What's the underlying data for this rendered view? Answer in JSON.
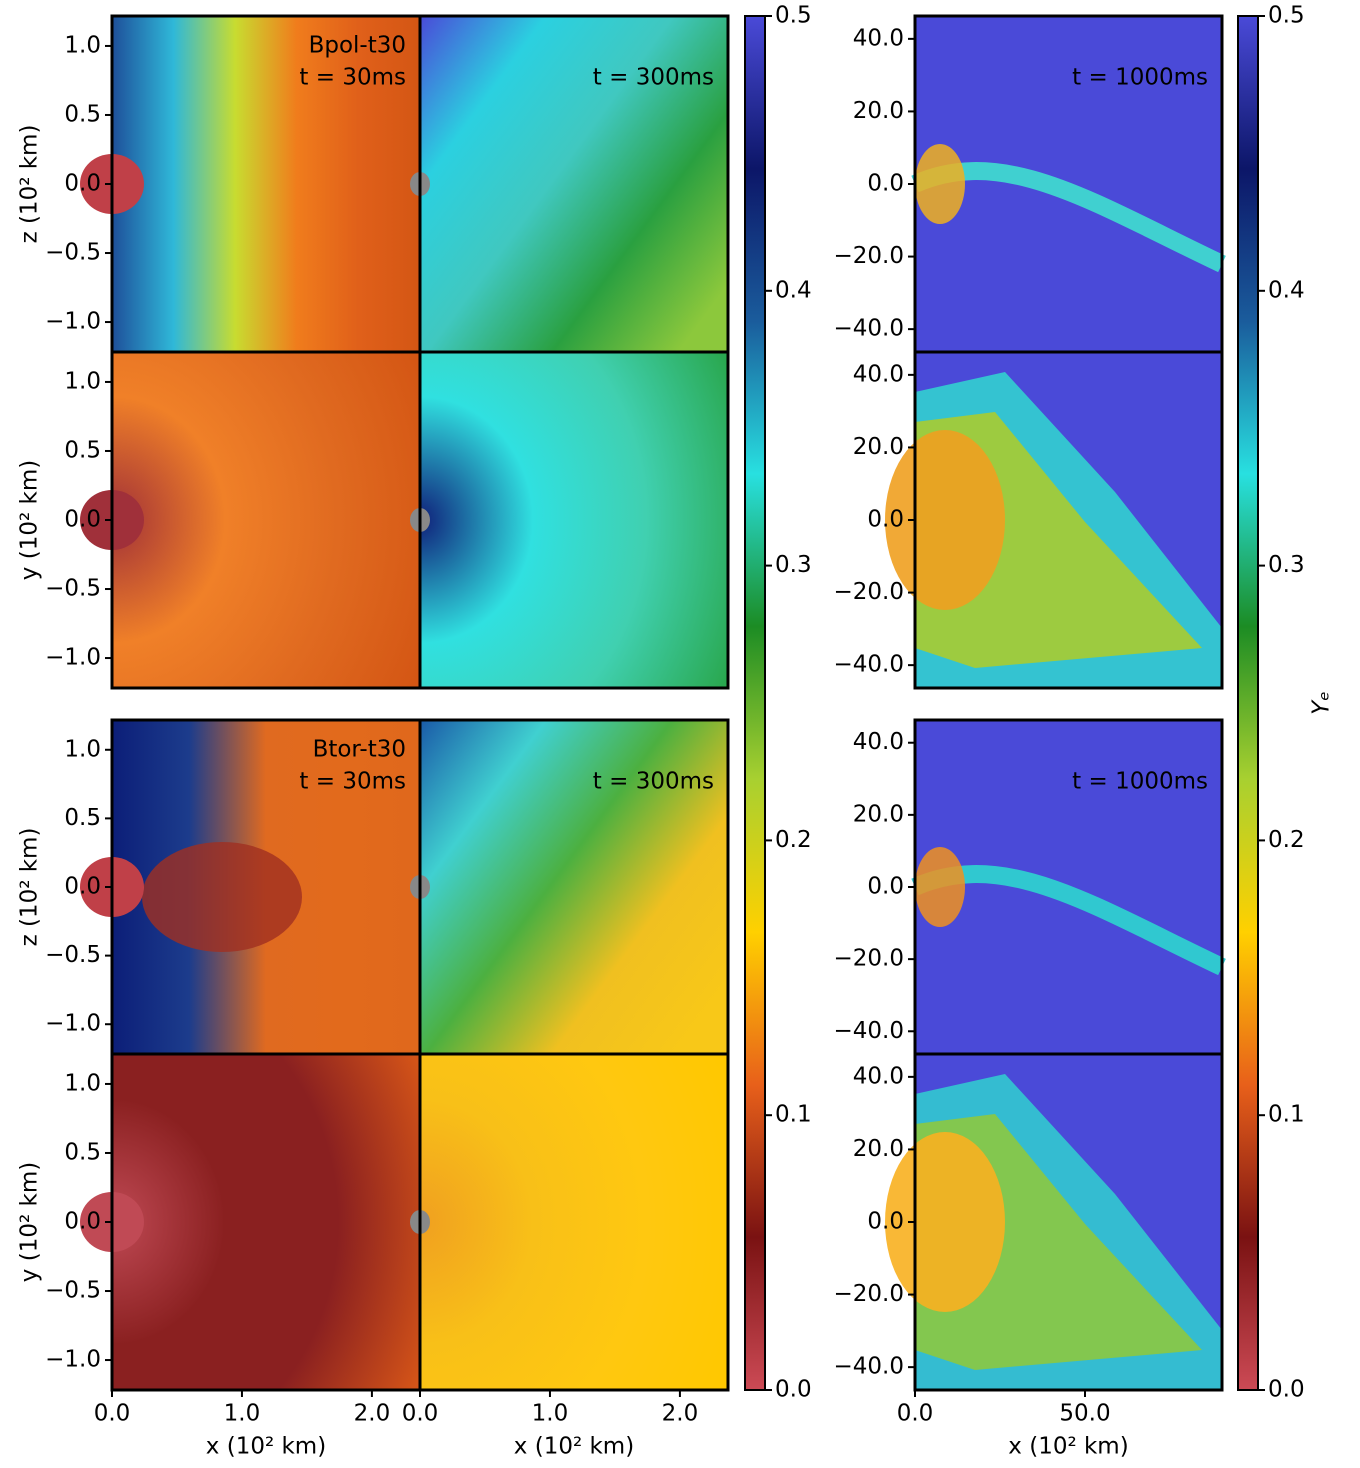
{
  "chart_data": [
    {
      "type": "heatmap",
      "annotation": [
        "Bpol-t30",
        "t = 30ms"
      ],
      "ylabel": "z (10² km)",
      "xlim": [
        0,
        2.37
      ],
      "ylim": [
        -1.217,
        1.217
      ],
      "yticks": [
        {
          "value": -1,
          "label": "−1.0"
        },
        {
          "value": -0.5,
          "label": "−0.5"
        },
        {
          "value": 0,
          "label": "0.0"
        },
        {
          "value": 0.5,
          "label": "0.5"
        },
        {
          "value": 1,
          "label": "1.0"
        }
      ]
    },
    {
      "type": "heatmap",
      "annotation": [
        "t = 300ms"
      ],
      "xlim": [
        0,
        2.37
      ],
      "ylim": [
        -1.217,
        1.217
      ]
    },
    {
      "type": "heatmap",
      "annotation": [
        "t = 1000ms"
      ],
      "xlim": [
        0,
        90.3
      ],
      "ylim": [
        -46.3,
        46.3
      ],
      "yticks": [
        {
          "value": -40,
          "label": "−40.0"
        },
        {
          "value": -20,
          "label": "−20.0"
        },
        {
          "value": 0,
          "label": "0.0"
        },
        {
          "value": 20,
          "label": "20.0"
        },
        {
          "value": 40,
          "label": "40.0"
        }
      ]
    },
    {
      "type": "heatmap",
      "ylabel": "y (10² km)",
      "xlim": [
        0,
        2.37
      ],
      "ylim": [
        -1.217,
        1.217
      ],
      "yticks": [
        {
          "value": -1,
          "label": "−1.0"
        },
        {
          "value": -0.5,
          "label": "−0.5"
        },
        {
          "value": 0,
          "label": "0.0"
        },
        {
          "value": 0.5,
          "label": "0.5"
        },
        {
          "value": 1,
          "label": "1.0"
        }
      ]
    },
    {
      "type": "heatmap",
      "xlim": [
        0,
        2.37
      ],
      "ylim": [
        -1.217,
        1.217
      ]
    },
    {
      "type": "heatmap",
      "xlim": [
        0,
        90.3
      ],
      "ylim": [
        -46.3,
        46.3
      ],
      "yticks": [
        {
          "value": -40,
          "label": "−40.0"
        },
        {
          "value": -20,
          "label": "−20.0"
        },
        {
          "value": 0,
          "label": "0.0"
        },
        {
          "value": 20,
          "label": "20.0"
        },
        {
          "value": 40,
          "label": "40.0"
        }
      ]
    },
    {
      "type": "heatmap",
      "annotation": [
        "Btor-t30",
        "t = 30ms"
      ],
      "ylabel": "z (10² km)",
      "xlim": [
        0,
        2.37
      ],
      "ylim": [
        -1.217,
        1.217
      ],
      "yticks": [
        {
          "value": -1,
          "label": "−1.0"
        },
        {
          "value": -0.5,
          "label": "−0.5"
        },
        {
          "value": 0,
          "label": "0.0"
        },
        {
          "value": 0.5,
          "label": "0.5"
        },
        {
          "value": 1,
          "label": "1.0"
        }
      ]
    },
    {
      "type": "heatmap",
      "annotation": [
        "t = 300ms"
      ],
      "xlim": [
        0,
        2.37
      ],
      "ylim": [
        -1.217,
        1.217
      ]
    },
    {
      "type": "heatmap",
      "annotation": [
        "t = 1000ms"
      ],
      "xlim": [
        0,
        90.3
      ],
      "ylim": [
        -46.3,
        46.3
      ],
      "yticks": [
        {
          "value": -40,
          "label": "−40.0"
        },
        {
          "value": -20,
          "label": "−20.0"
        },
        {
          "value": 0,
          "label": "0.0"
        },
        {
          "value": 20,
          "label": "20.0"
        },
        {
          "value": 40,
          "label": "40.0"
        }
      ]
    },
    {
      "type": "heatmap",
      "ylabel": "y (10² km)",
      "xlabel": "x (10² km)",
      "xlim": [
        0,
        2.37
      ],
      "ylim": [
        -1.217,
        1.217
      ],
      "yticks": [
        {
          "value": -1,
          "label": "−1.0"
        },
        {
          "value": -0.5,
          "label": "−0.5"
        },
        {
          "value": 0,
          "label": "0.0"
        },
        {
          "value": 0.5,
          "label": "0.5"
        },
        {
          "value": 1,
          "label": "1.0"
        }
      ],
      "xticks": [
        {
          "value": 0,
          "label": "0.0"
        },
        {
          "value": 1,
          "label": "1.0"
        },
        {
          "value": 2,
          "label": "2.0"
        }
      ]
    },
    {
      "type": "heatmap",
      "xlabel": "x (10² km)",
      "xlim": [
        0,
        2.37
      ],
      "ylim": [
        -1.217,
        1.217
      ],
      "xticks": [
        {
          "value": 0,
          "label": "0.0"
        },
        {
          "value": 1,
          "label": "1.0"
        },
        {
          "value": 2,
          "label": "2.0"
        }
      ]
    },
    {
      "type": "heatmap",
      "xlabel": "x (10² km)",
      "xlim": [
        0,
        90.3
      ],
      "ylim": [
        -46.3,
        46.3
      ],
      "yticks": [
        {
          "value": -40,
          "label": "−40.0"
        },
        {
          "value": -20,
          "label": "−20.0"
        },
        {
          "value": 0,
          "label": "0.0"
        },
        {
          "value": 20,
          "label": "20.0"
        },
        {
          "value": 40,
          "label": "40.0"
        }
      ],
      "xticks": [
        {
          "value": 0,
          "label": "0.0"
        },
        {
          "value": 50,
          "label": "50.0"
        }
      ]
    },
    {
      "type": "colorbar",
      "ylim": [
        0,
        0.5
      ],
      "yticks": [
        {
          "value": 0,
          "label": "0.0"
        },
        0.1,
        0.2,
        0.3,
        0.4,
        0.5
      ],
      "colors": [
        "#cc4a55",
        "#7a1212",
        "#e8601a",
        "#ffd000",
        "#a8d030",
        "#1c8c24",
        "#28e0e0",
        "#1a5c9c",
        "#0c1668",
        "#4a4ad8"
      ]
    },
    {
      "type": "colorbar",
      "ylabel": "Yₑ",
      "ylim": [
        0,
        0.5
      ],
      "yticks": [
        {
          "value": 0,
          "label": "0.0"
        },
        0.1,
        0.2,
        0.3,
        0.4,
        0.5
      ],
      "colors": [
        "#cc4a55",
        "#7a1212",
        "#e8601a",
        "#ffd000",
        "#a8d030",
        "#1c8c24",
        "#28e0e0",
        "#1a5c9c",
        "#0c1668",
        "#4a4ad8"
      ]
    }
  ]
}
